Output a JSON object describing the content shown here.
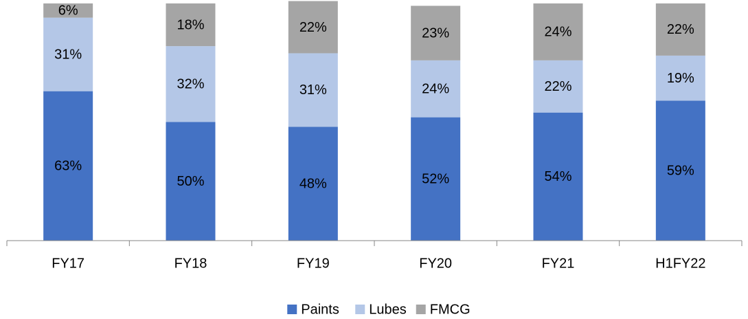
{
  "chart_data": {
    "type": "stacked_bar",
    "categories": [
      "FY17",
      "FY18",
      "FY19",
      "FY20",
      "FY21",
      "H1FY22"
    ],
    "series": [
      {
        "name": "Paints",
        "color": "#4472c4",
        "values": [
          63,
          50,
          48,
          52,
          54,
          59
        ],
        "value_labels": [
          "63%",
          "50%",
          "48%",
          "52%",
          "54%",
          "59%"
        ]
      },
      {
        "name": "Lubes",
        "color": "#b4c7e7",
        "values": [
          31,
          32,
          31,
          24,
          22,
          19
        ],
        "value_labels": [
          "31%",
          "32%",
          "31%",
          "24%",
          "22%",
          "19%"
        ]
      },
      {
        "name": "FMCG",
        "color": "#a5a5a5",
        "values": [
          6,
          18,
          22,
          23,
          24,
          22
        ],
        "value_labels": [
          "6%",
          "18%",
          "22%",
          "23%",
          "24%",
          "22%"
        ]
      }
    ],
    "ylim": [
      0,
      100
    ]
  }
}
